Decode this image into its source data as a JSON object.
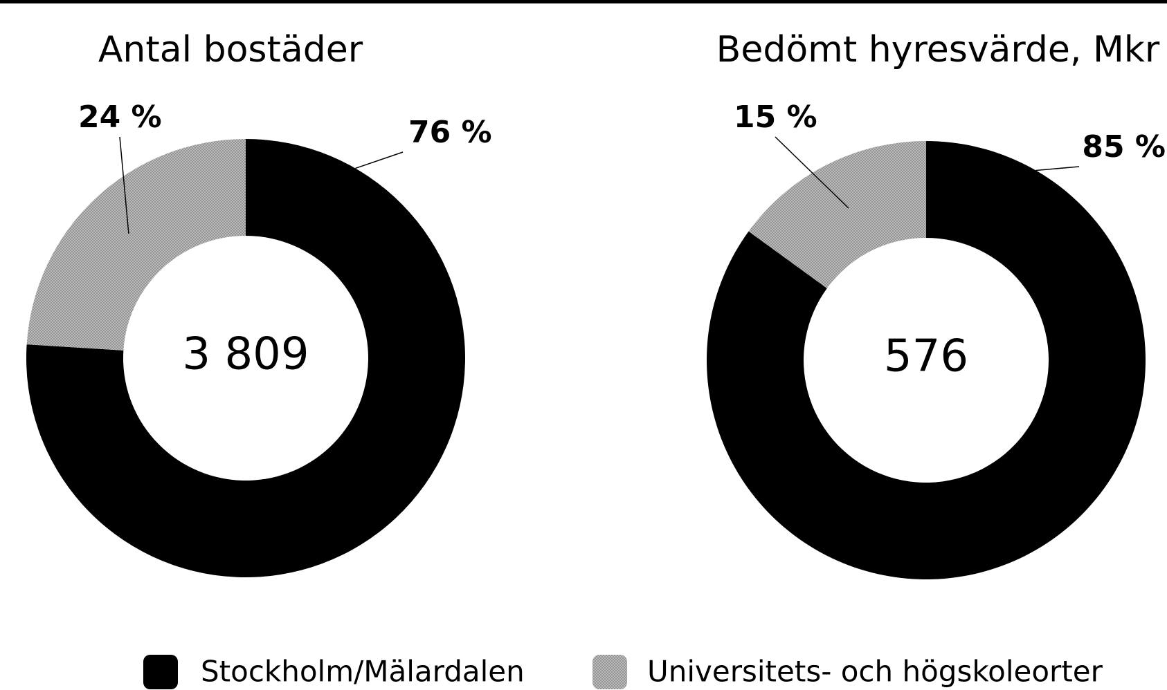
{
  "chart_data": [
    {
      "type": "donut",
      "title": "Antal bostäder",
      "center_label": "3 809",
      "categories": [
        "Stockholm/Mälardalen",
        "Universitets- och högskoleorter"
      ],
      "values": [
        76,
        24
      ],
      "value_labels": [
        "76 %",
        "24 %"
      ],
      "colors": [
        "#000000",
        "pattern-grey"
      ]
    },
    {
      "type": "donut",
      "title": "Bedömt hyresvärde, Mkr",
      "center_label": "576",
      "categories": [
        "Stockholm/Mälardalen",
        "Universitets- och högskoleorter"
      ],
      "values": [
        85,
        15
      ],
      "value_labels": [
        "85 %",
        "15 %"
      ],
      "colors": [
        "#000000",
        "pattern-grey"
      ]
    }
  ]
}
